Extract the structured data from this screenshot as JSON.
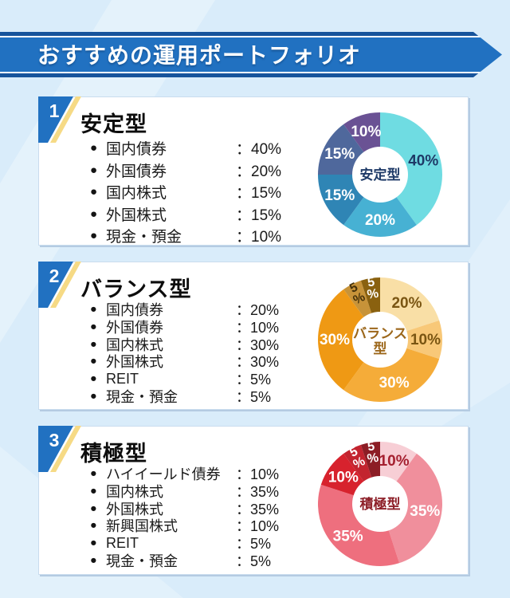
{
  "header": {
    "title": "おすすめの運用ポートフォリオ"
  },
  "colors": {
    "background": "#d9ecfa",
    "banner_blue": "#2171c1",
    "banner_edge": "#17549c",
    "badge_blue": "#2171c1",
    "badge_yellow": "#f6da85"
  },
  "cards": [
    {
      "number": "1",
      "title": "安定型",
      "items": [
        {
          "label": "国内債券",
          "value": "：40%"
        },
        {
          "label": "外国債券",
          "value": "：20%"
        },
        {
          "label": "国内株式",
          "value": "：15%"
        },
        {
          "label": "外国株式",
          "value": "：15%"
        },
        {
          "label": "現金・預金",
          "value": "：10%"
        }
      ]
    },
    {
      "number": "2",
      "title": "バランス型",
      "items": [
        {
          "label": "国内債券",
          "value": "：20%"
        },
        {
          "label": "外国債券",
          "value": "：10%"
        },
        {
          "label": "国内株式",
          "value": "：30%"
        },
        {
          "label": "外国株式",
          "value": "：30%"
        },
        {
          "label": "REIT",
          "value": "：5%"
        },
        {
          "label": "現金・預金",
          "value": "：5%"
        }
      ]
    },
    {
      "number": "3",
      "title": "積極型",
      "items": [
        {
          "label": "ハイイールド債券",
          "value": "：10%"
        },
        {
          "label": "国内株式",
          "value": "：35%"
        },
        {
          "label": "外国株式",
          "value": "：35%"
        },
        {
          "label": "新興国株式",
          "value": "：10%"
        },
        {
          "label": "REIT",
          "value": "：5%"
        },
        {
          "label": "現金・預金",
          "value": "：5%"
        }
      ]
    }
  ],
  "chart_data": [
    {
      "type": "pie",
      "donut": true,
      "title": "安定型",
      "labels": [
        "国内債券",
        "外国債券",
        "国内株式",
        "外国株式",
        "現金・預金"
      ],
      "values": [
        40,
        20,
        15,
        15,
        10
      ],
      "slice_labels": [
        "40%",
        "20%",
        "15%",
        "15%",
        "10%"
      ],
      "colors": [
        "#6fdce2",
        "#47b1d3",
        "#2f85b5",
        "#4f689c",
        "#6a5294"
      ],
      "label_colors": [
        "#1e3a67",
        "#ffffff",
        "#ffffff",
        "#ffffff",
        "#ffffff"
      ],
      "center_label": [
        "安定型"
      ],
      "center_color": "#1e3a67"
    },
    {
      "type": "pie",
      "donut": true,
      "title": "バランス型",
      "labels": [
        "国内債券",
        "外国債券",
        "国内株式",
        "外国株式",
        "REIT",
        "現金・預金"
      ],
      "values": [
        20,
        10,
        30,
        30,
        5,
        5
      ],
      "slice_labels": [
        "20%",
        "10%",
        "30%",
        "30%",
        "5%",
        "5%"
      ],
      "colors": [
        "#f9dfa6",
        "#f8c878",
        "#f5ac39",
        "#ef9914",
        "#c79339",
        "#8a610f"
      ],
      "label_colors": [
        "#7a5512",
        "#7a5512",
        "#ffffff",
        "#ffffff",
        "#46320a",
        "#ffffff"
      ],
      "center_label": [
        "バランス",
        "型"
      ],
      "center_color": "#9c671b"
    },
    {
      "type": "pie",
      "donut": true,
      "title": "積極型",
      "labels": [
        "ハイイールド債券",
        "国内株式",
        "外国株式",
        "新興国株式",
        "REIT",
        "現金・預金"
      ],
      "values": [
        10,
        35,
        35,
        10,
        5,
        5
      ],
      "slice_labels": [
        "10%",
        "35%",
        "35%",
        "10%",
        "5%",
        "5%"
      ],
      "colors": [
        "#f7ced5",
        "#f08f9c",
        "#ee6f7e",
        "#d7222d",
        "#c3242f",
        "#8c1d25"
      ],
      "label_colors": [
        "#a52030",
        "#ffffff",
        "#ffffff",
        "#ffffff",
        "#ffffff",
        "#ffffff"
      ],
      "center_label": [
        "積極型"
      ],
      "center_color": "#8d1f28"
    }
  ]
}
